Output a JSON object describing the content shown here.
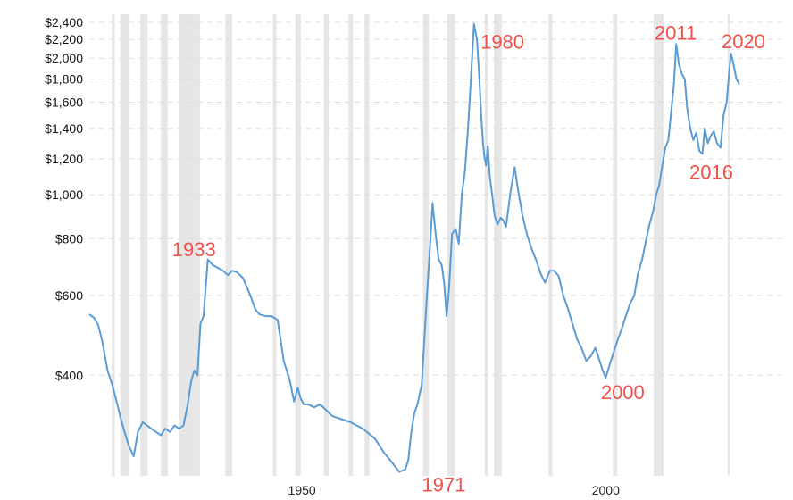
{
  "chart_data": {
    "type": "line",
    "scale": "log",
    "grid": true,
    "series_color": "#5b9bd5",
    "annotation_color": "#f0524a",
    "band_color": "#e6e6e6",
    "ylim": [
      240,
      2500
    ],
    "xlim": [
      1915,
      2024.5
    ],
    "y_ticks": [
      {
        "value": 400,
        "label": "$400"
      },
      {
        "value": 600,
        "label": "$600"
      },
      {
        "value": 800,
        "label": "$800"
      },
      {
        "value": 1000,
        "label": "$1,000"
      },
      {
        "value": 1200,
        "label": "$1,200"
      },
      {
        "value": 1400,
        "label": "$1,400"
      },
      {
        "value": 1600,
        "label": "$1,600"
      },
      {
        "value": 1800,
        "label": "$1,800"
      },
      {
        "value": 2000,
        "label": "$2,000"
      },
      {
        "value": 2200,
        "label": "$2,200"
      },
      {
        "value": 2400,
        "label": "$2,400"
      }
    ],
    "x_ticks": [
      {
        "value": 1950,
        "label": "1950"
      },
      {
        "value": 2000,
        "label": "2000"
      }
    ],
    "shaded_periods": [
      [
        1918.7,
        1919.2
      ],
      [
        1920.1,
        1921.5
      ],
      [
        1923.4,
        1924.6
      ],
      [
        1926.8,
        1927.9
      ],
      [
        1929.7,
        1933.2
      ],
      [
        1937.4,
        1938.5
      ],
      [
        1945.2,
        1945.8
      ],
      [
        1948.9,
        1949.8
      ],
      [
        1953.6,
        1954.4
      ],
      [
        1957.7,
        1958.4
      ],
      [
        1960.3,
        1961.1
      ],
      [
        1969.9,
        1970.9
      ],
      [
        1973.9,
        1975.2
      ],
      [
        1980.1,
        1980.6
      ],
      [
        1981.6,
        1982.9
      ],
      [
        1990.6,
        1991.2
      ],
      [
        2001.2,
        2001.9
      ],
      [
        2007.9,
        2009.5
      ],
      [
        2020.1,
        2020.4
      ]
    ],
    "annotations": [
      {
        "label": "1933",
        "x": 1934.0,
        "y": 712
      },
      {
        "label": "1971",
        "x": 1971.0,
        "y": 243
      },
      {
        "label": "1980",
        "x": 1979.9,
        "y": 2300
      },
      {
        "label": "2000",
        "x": 2000.0,
        "y": 395
      },
      {
        "label": "2011",
        "x": 2011.5,
        "y": 2150
      },
      {
        "label": "2016",
        "x": 2015.9,
        "y": 1230
      },
      {
        "label": "2020",
        "x": 2020.6,
        "y": 2050
      }
    ],
    "x": [
      1915.0,
      1915.8,
      1916.5,
      1917.2,
      1918.0,
      1918.8,
      1919.5,
      1920.2,
      1920.8,
      1921.5,
      1922.3,
      1923.0,
      1923.8,
      1924.5,
      1925.2,
      1926.0,
      1926.8,
      1927.5,
      1928.3,
      1929.0,
      1929.8,
      1930.5,
      1931.2,
      1931.8,
      1932.3,
      1932.8,
      1933.3,
      1933.8,
      1934.5,
      1935.3,
      1936.2,
      1937.0,
      1937.8,
      1938.5,
      1939.3,
      1940.3,
      1941.5,
      1942.3,
      1943.0,
      1944.0,
      1945.0,
      1946.0,
      1947.0,
      1948.0,
      1948.7,
      1949.3,
      1949.8,
      1950.3,
      1951.0,
      1952.0,
      1953.0,
      1954.0,
      1955.0,
      1956.5,
      1958.0,
      1960.0,
      1962.0,
      1963.5,
      1964.5,
      1965.5,
      1966.0,
      1967.0,
      1967.5,
      1968.0,
      1968.5,
      1969.0,
      1969.7,
      1970.5,
      1971.0,
      1971.5,
      1972.0,
      1972.5,
      1973.0,
      1973.4,
      1973.8,
      1974.2,
      1974.7,
      1975.3,
      1975.8,
      1976.3,
      1976.8,
      1977.3,
      1977.8,
      1978.3,
      1978.8,
      1979.2,
      1979.5,
      1979.8,
      1980.0,
      1980.3,
      1980.6,
      1980.9,
      1981.3,
      1981.7,
      1982.2,
      1982.7,
      1983.1,
      1983.6,
      1984.3,
      1985.0,
      1985.6,
      1986.3,
      1987.0,
      1987.8,
      1988.5,
      1989.3,
      1990.0,
      1990.8,
      1991.5,
      1992.3,
      1993.0,
      1993.8,
      1994.5,
      1995.3,
      1996.0,
      1996.8,
      1997.5,
      1998.3,
      1999.0,
      1999.5,
      2000.0,
      2000.6,
      2001.3,
      2002.0,
      2002.7,
      2003.3,
      2004.0,
      2004.7,
      2005.3,
      2006.0,
      2006.6,
      2007.2,
      2007.8,
      2008.3,
      2008.8,
      2009.3,
      2009.8,
      2010.3,
      2010.8,
      2011.2,
      2011.6,
      2012.0,
      2012.5,
      2013.0,
      2013.4,
      2013.9,
      2014.4,
      2014.9,
      2015.4,
      2015.9,
      2016.3,
      2016.8,
      2017.3,
      2017.8,
      2018.3,
      2018.9,
      2019.4,
      2019.9,
      2020.3,
      2020.6,
      2021.0,
      2021.5,
      2022.0
    ],
    "values": [
      545,
      535,
      515,
      470,
      410,
      380,
      350,
      320,
      300,
      280,
      265,
      300,
      315,
      310,
      305,
      300,
      295,
      305,
      300,
      310,
      305,
      310,
      345,
      390,
      410,
      400,
      520,
      540,
      720,
      700,
      690,
      680,
      665,
      680,
      675,
      655,
      600,
      560,
      545,
      540,
      540,
      530,
      430,
      390,
      350,
      375,
      355,
      345,
      345,
      340,
      345,
      335,
      325,
      320,
      315,
      305,
      290,
      270,
      260,
      250,
      245,
      248,
      260,
      300,
      330,
      345,
      380,
      580,
      740,
      960,
      820,
      720,
      700,
      640,
      540,
      620,
      820,
      840,
      780,
      1000,
      1120,
      1380,
      1800,
      2380,
      2200,
      1800,
      1500,
      1300,
      1220,
      1160,
      1280,
      1100,
      1000,
      900,
      860,
      890,
      880,
      850,
      1010,
      1150,
      1020,
      900,
      820,
      760,
      720,
      670,
      640,
      680,
      680,
      660,
      600,
      560,
      520,
      480,
      460,
      430,
      440,
      460,
      430,
      410,
      395,
      420,
      450,
      480,
      510,
      540,
      575,
      600,
      670,
      720,
      790,
      860,
      920,
      1000,
      1050,
      1160,
      1270,
      1320,
      1540,
      1740,
      2150,
      1950,
      1850,
      1800,
      1550,
      1400,
      1320,
      1370,
      1250,
      1230,
      1400,
      1300,
      1350,
      1380,
      1300,
      1270,
      1500,
      1600,
      1850,
      2050,
      1950,
      1800,
      1750
    ]
  }
}
